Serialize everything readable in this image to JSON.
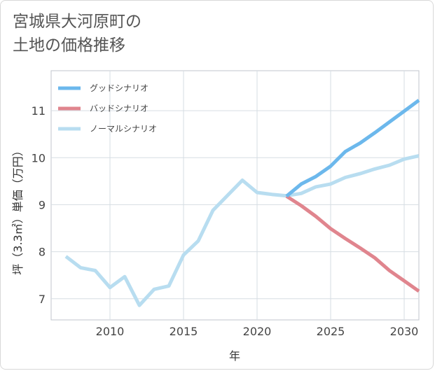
{
  "title_lines": [
    "宮城県大河原町の",
    "土地の価格推移"
  ],
  "chart_data": {
    "type": "line",
    "xlabel": "年",
    "ylabel": "坪（3.3㎡）単価（万円）",
    "xlim": [
      2006,
      2031
    ],
    "ylim": [
      6.55,
      11.85
    ],
    "x_ticks": [
      2010,
      2015,
      2020,
      2025,
      2030
    ],
    "y_ticks": [
      7,
      8,
      9,
      10,
      11
    ],
    "grid": true,
    "legend_position": "top-left",
    "series": [
      {
        "name": "グッドシナリオ",
        "color": "#6cb8ec",
        "x": [
          2022,
          2023,
          2024,
          2025,
          2026,
          2027,
          2028,
          2029,
          2030,
          2031
        ],
        "y": [
          9.18,
          9.44,
          9.6,
          9.82,
          10.13,
          10.31,
          10.53,
          10.76,
          10.99,
          11.22
        ]
      },
      {
        "name": "バッドシナリオ",
        "color": "#e0858e",
        "x": [
          2022,
          2023,
          2024,
          2025,
          2026,
          2027,
          2028,
          2029,
          2030,
          2031
        ],
        "y": [
          9.18,
          8.98,
          8.75,
          8.49,
          8.28,
          8.08,
          7.87,
          7.6,
          7.38,
          7.16
        ]
      },
      {
        "name": "ノーマルシナリオ",
        "color": "#b8ddf0",
        "x": [
          2007,
          2008,
          2009,
          2010,
          2011,
          2012,
          2013,
          2014,
          2015,
          2016,
          2017,
          2018,
          2019,
          2020,
          2021,
          2022,
          2023,
          2024,
          2025,
          2026,
          2027,
          2028,
          2029,
          2030,
          2031
        ],
        "y": [
          7.9,
          7.66,
          7.6,
          7.24,
          7.47,
          6.86,
          7.2,
          7.27,
          7.93,
          8.23,
          8.88,
          9.2,
          9.52,
          9.26,
          9.22,
          9.19,
          9.24,
          9.38,
          9.44,
          9.58,
          9.66,
          9.76,
          9.84,
          9.97,
          10.04
        ]
      }
    ]
  }
}
